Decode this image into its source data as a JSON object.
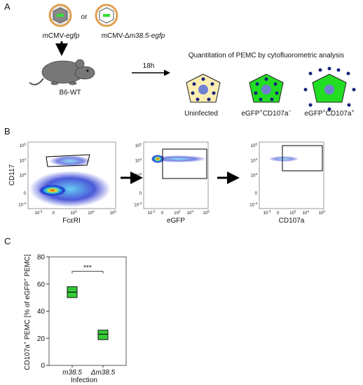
{
  "panel_labels": [
    "A",
    "B",
    "C"
  ],
  "panel_a": {
    "virus_wt": [
      "mCMV-",
      "egfp"
    ],
    "or": "or",
    "virus_mut": [
      "mCMV-Δ",
      "m38.5-egfp"
    ],
    "mouse": "B6-WT",
    "time": "18h",
    "heading": "Quantitation of PEMC by cytofluorometric analysis",
    "cells": [
      [
        "Uninfected"
      ],
      [
        "eGFP",
        "+",
        "CD107a",
        "−"
      ],
      [
        "eGFP",
        "+",
        "CD107a",
        "+"
      ]
    ]
  },
  "panel_b": {
    "flow_ticks": [
      [
        "10",
        "5"
      ],
      [
        "10",
        "4"
      ],
      [
        "10",
        "3"
      ],
      [
        "0"
      ],
      [
        "10",
        "-3"
      ]
    ],
    "plots": [
      {
        "x_label": "FcεRI",
        "y_label": "CD117"
      },
      {
        "x_label": "eGFP"
      },
      {
        "x_label": "CD107a"
      }
    ]
  },
  "chart_data": {
    "type": "box",
    "y_label": [
      "CD107a",
      "+",
      " PEMC [% of eGFP",
      "+",
      " PEMC]"
    ],
    "x_label": "Infection",
    "categories": [
      "m38.5",
      "Δm38.5"
    ],
    "low": [
      50,
      19
    ],
    "median": [
      54,
      23
    ],
    "high": [
      58,
      26
    ],
    "color": "#33cc33",
    "ylim": [
      0,
      80
    ],
    "yticks": [
      0,
      20,
      40,
      60,
      80
    ],
    "significance": "***"
  }
}
